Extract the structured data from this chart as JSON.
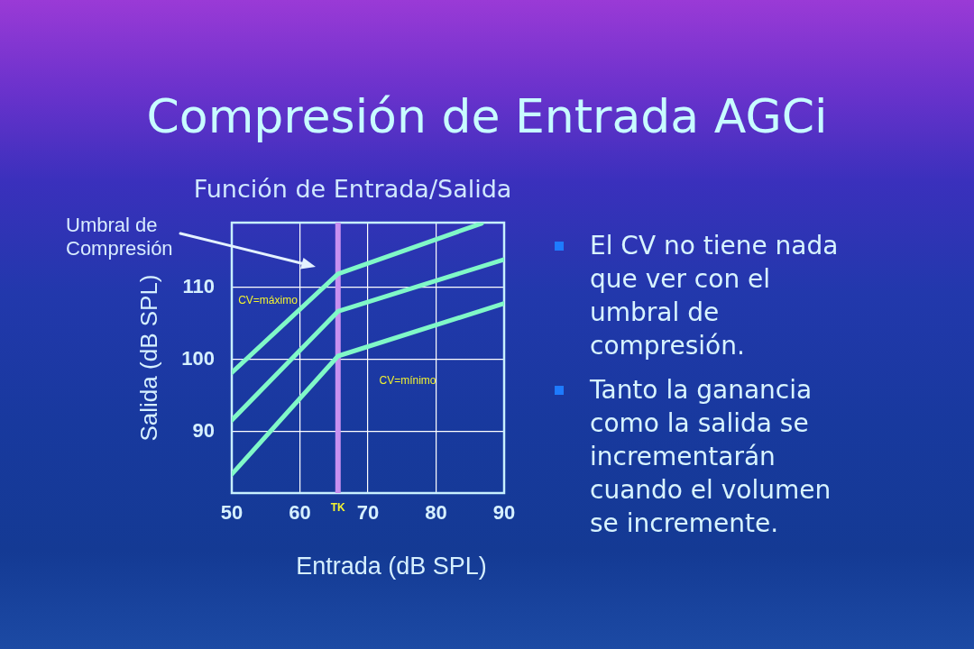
{
  "chart_data": {
    "type": "line",
    "title": "Compresión de Entrada AGCi",
    "subtitle": "Función de Entrada/Salida",
    "xlabel": "Entrada (dB SPL)",
    "ylabel": "Salida (dB SPL)",
    "series": [
      {
        "color": "#80f8c8",
        "x": [
          50,
          65.6,
          86.7
        ],
        "values": [
          98.2,
          111.9,
          118.9
        ]
      },
      {
        "color": "#80f8c8",
        "x": [
          50,
          65.6,
          90
        ],
        "values": [
          91.6,
          106.7,
          113.9
        ]
      },
      {
        "color": "#80f8c8",
        "x": [
          50,
          65.6,
          90
        ],
        "values": [
          84.1,
          100.5,
          107.8
        ]
      }
    ],
    "xlim": [
      50,
      90
    ],
    "xticks": [
      50,
      60,
      70,
      80,
      90
    ],
    "ylim": [
      81.5,
      119
    ],
    "yticks": [
      90,
      100,
      110
    ],
    "grid": true,
    "legend": false,
    "marker": "none",
    "ref_lines": [
      {
        "axis": "x",
        "value": 65.6,
        "label": "TK",
        "color": "#c890f0"
      }
    ],
    "annotations": [
      "Umbral de Compresión",
      "CV=máximo",
      "CV=mínimo",
      "El CV no tiene nada que ver con el umbral de compresión.",
      "Tanto la ganancia como la salida se incrementarán cuando el volumen se incremente."
    ]
  }
}
